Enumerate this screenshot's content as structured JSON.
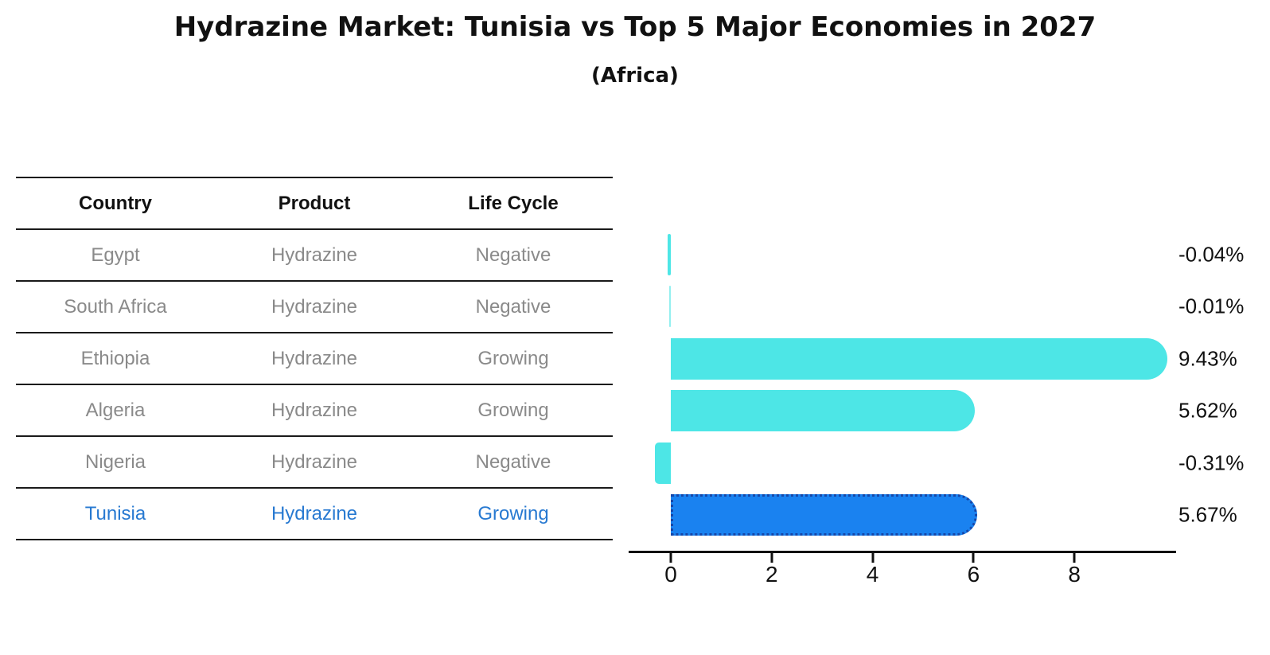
{
  "title": "Hydrazine Market: Tunisia vs Top 5 Major Economies in 2027",
  "subtitle": "(Africa)",
  "table": {
    "headers": [
      "Country",
      "Product",
      "Life Cycle"
    ],
    "rows": [
      {
        "country": "Egypt",
        "product": "Hydrazine",
        "life_cycle": "Negative",
        "highlighted": false
      },
      {
        "country": "South Africa",
        "product": "Hydrazine",
        "life_cycle": "Negative",
        "highlighted": false
      },
      {
        "country": "Ethiopia",
        "product": "Hydrazine",
        "life_cycle": "Growing",
        "highlighted": false
      },
      {
        "country": "Algeria",
        "product": "Hydrazine",
        "life_cycle": "Growing",
        "highlighted": false
      },
      {
        "country": "Nigeria",
        "product": "Hydrazine",
        "life_cycle": "Negative",
        "highlighted": false
      },
      {
        "country": "Tunisia",
        "product": "Hydrazine",
        "life_cycle": "Growing",
        "highlighted": true
      }
    ]
  },
  "chart_data": {
    "type": "bar",
    "orientation": "horizontal",
    "title": "Hydrazine Market: Tunisia vs Top 5 Major Economies in 2027",
    "subtitle": "(Africa)",
    "categories": [
      "Egypt",
      "South Africa",
      "Ethiopia",
      "Algeria",
      "Nigeria",
      "Tunisia"
    ],
    "values": [
      -0.04,
      -0.01,
      9.43,
      5.62,
      -0.31,
      5.67
    ],
    "value_labels": [
      "-0.04%",
      "-0.01%",
      "9.43%",
      "5.62%",
      "-0.31%",
      "5.67%"
    ],
    "xlabel": "",
    "ylabel": "",
    "xticks": [
      0,
      2,
      4,
      6,
      8
    ],
    "xlim": [
      -0.85,
      10.0
    ],
    "grid": false,
    "legend": null,
    "bar_color": "#4de6e6",
    "highlight_index": 5,
    "highlight_bar_color": "#1a82f0",
    "highlight_edge_color": "#1647a8",
    "highlight_text_color": "#2779d1"
  }
}
